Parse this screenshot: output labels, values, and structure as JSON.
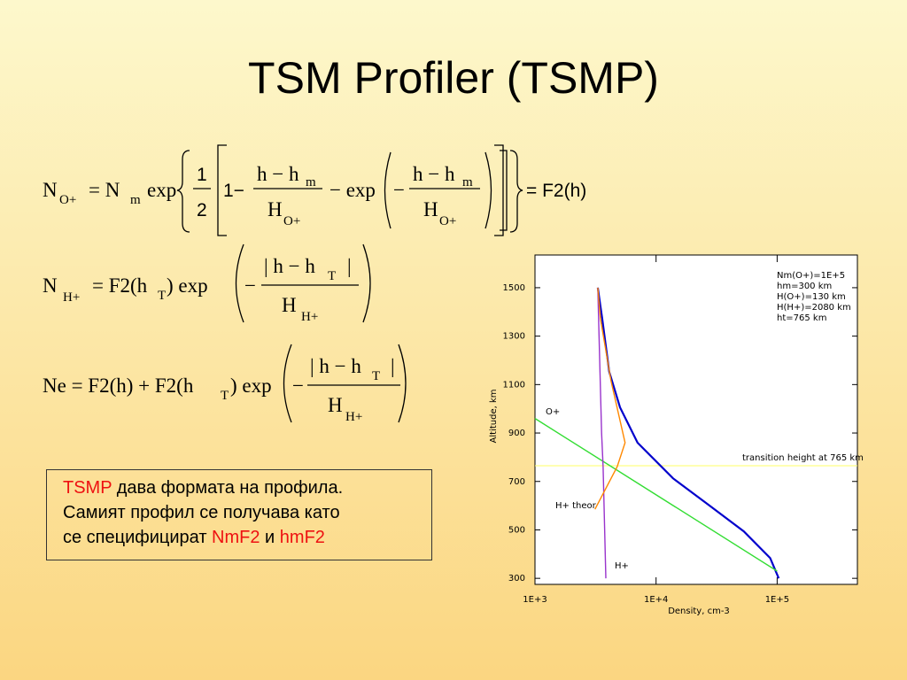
{
  "title": "TSM Profiler (TSMP)",
  "equations": [
    [
      "N",
      "O+",
      "= N",
      "m",
      "exp",
      "1",
      "2",
      "1−",
      "h − h",
      "m",
      "H",
      "O+",
      "− exp",
      "−",
      "h − h",
      "m",
      "H",
      "O+",
      "= F2(h)"
    ],
    [
      "N",
      "H+",
      "= F2(h",
      "T",
      ") exp",
      "−",
      "| h − h",
      "T",
      "|",
      "H",
      "H+"
    ],
    [
      "Ne = F2(h) + F2(h",
      "T",
      ") exp",
      "−",
      "| h − h",
      "T",
      "|",
      "H",
      "H+"
    ]
  ],
  "text_box": {
    "lines": [
      [
        "TSMP",
        " дава формата на профила."
      ],
      [
        "Самият профил се получава като"
      ],
      [
        "се специфицират ",
        "NmF2",
        " и ",
        "hmF2"
      ]
    ]
  },
  "chart_data": {
    "type": "line",
    "x_label": "Density, cm-3",
    "y_label": "Altitude, km",
    "log_x": true,
    "xlim": [
      1000,
      460000
    ],
    "xticks": [
      {
        "value": 1000,
        "label": "1E+3"
      },
      {
        "value": 10000,
        "label": "1E+4"
      },
      {
        "value": 100000,
        "label": "1E+5"
      }
    ],
    "ylim": [
      275,
      1635
    ],
    "yticks": [
      300,
      500,
      700,
      900,
      1100,
      1300,
      1500
    ],
    "series": [
      {
        "color": "#0000cc",
        "x": [
          103000,
          87500,
          53000,
          27000,
          13800,
          7030,
          5040,
          4100,
          3590,
          3300
        ],
        "values": [
          300,
          384,
          494,
          604,
          713,
          860,
          1006,
          1153,
          1372,
          1500
        ]
      },
      {
        "name": "O+",
        "color": "#33dd33",
        "x": [
          1000,
          100000
        ],
        "values": [
          960,
          330
        ]
      },
      {
        "name": "H+",
        "color": "#9933cc",
        "x": [
          3300,
          3550,
          3650,
          3850
        ],
        "values": [
          1500,
          900,
          761,
          300
        ]
      },
      {
        "name": "H+ theor",
        "color": "#ff8800",
        "x": [
          3130,
          4770,
          5550,
          4240,
          3470,
          3300
        ],
        "values": [
          585,
          761,
          860,
          1116,
          1372,
          1500
        ]
      }
    ],
    "hline": 765,
    "hline_color": "#ffff66",
    "annotations": [
      "Nm(O+)=1E+5",
      "hm=300 km",
      "H(O+)=130 km",
      "H(H+)=2080 km",
      "ht=765 km",
      "transition height at 765 km"
    ]
  }
}
